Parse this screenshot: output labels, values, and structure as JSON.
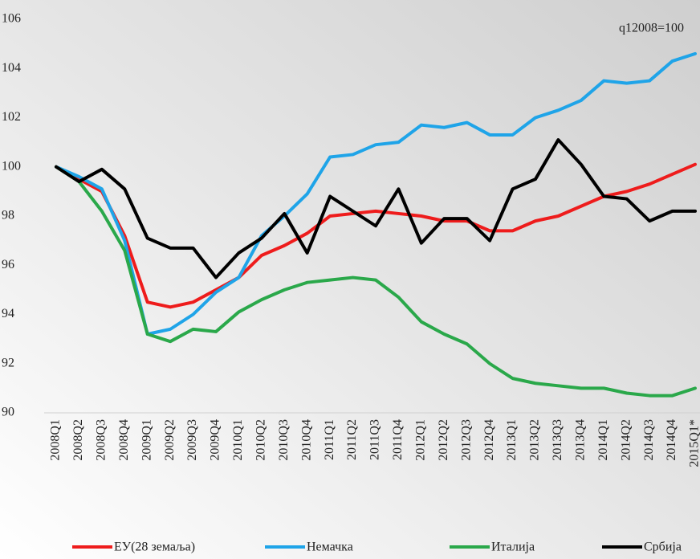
{
  "chart_data": {
    "type": "line",
    "annotation": "q12008=100",
    "categories": [
      "2008Q1",
      "2008Q2",
      "2008Q3",
      "2008Q4",
      "2009Q1",
      "2009Q2",
      "2009Q3",
      "2009Q4",
      "2010Q1",
      "2010Q2",
      "2010Q3",
      "2010Q4",
      "2011Q1",
      "2011Q2",
      "2011Q3",
      "2011Q4",
      "2012Q1",
      "2012Q2",
      "2012Q3",
      "2012Q4",
      "2013Q1",
      "2013Q2",
      "2013Q3",
      "2013Q4",
      "2014Q1",
      "2014Q2",
      "2014Q3",
      "2014Q4",
      "2015Q1*"
    ],
    "series": [
      {
        "name": "ЕУ(28 земаља)",
        "color": "#ee1c1c",
        "values": [
          100,
          99.5,
          99.0,
          97.2,
          94.5,
          94.3,
          94.5,
          95.0,
          95.5,
          96.4,
          96.8,
          97.3,
          98.0,
          98.1,
          98.2,
          98.1,
          98.0,
          97.8,
          97.8,
          97.4,
          97.4,
          97.8,
          98.0,
          98.4,
          98.8,
          99.0,
          99.3,
          99.7,
          100.1
        ]
      },
      {
        "name": "Немачка",
        "color": "#1fa4e8",
        "values": [
          100,
          99.6,
          99.1,
          97.0,
          93.2,
          93.4,
          94.0,
          94.9,
          95.5,
          97.2,
          98.0,
          98.9,
          100.4,
          100.5,
          100.9,
          101.0,
          101.7,
          101.6,
          101.8,
          101.3,
          101.3,
          102.0,
          102.3,
          102.7,
          103.5,
          103.4,
          103.5,
          104.3,
          104.6
        ]
      },
      {
        "name": "Италија",
        "color": "#2aa84a",
        "values": [
          100,
          99.4,
          98.2,
          96.6,
          93.2,
          92.9,
          93.4,
          93.3,
          94.1,
          94.6,
          95.0,
          95.3,
          95.4,
          95.5,
          95.4,
          94.7,
          93.7,
          93.2,
          92.8,
          92.0,
          91.4,
          91.2,
          91.1,
          91.0,
          91.0,
          90.8,
          90.7,
          90.7,
          91.0
        ]
      },
      {
        "name": "Србија",
        "color": "#000000",
        "values": [
          100,
          99.4,
          99.9,
          99.1,
          97.1,
          96.7,
          96.7,
          95.5,
          96.5,
          97.1,
          98.1,
          96.5,
          98.8,
          98.2,
          97.6,
          99.1,
          96.9,
          97.9,
          97.9,
          97.0,
          99.1,
          99.5,
          101.1,
          100.1,
          98.8,
          98.7,
          97.8,
          98.2,
          98.2
        ]
      }
    ],
    "ylim": [
      90,
      106
    ],
    "yticks": [
      90,
      92,
      94,
      96,
      98,
      100,
      102,
      104,
      106
    ]
  }
}
